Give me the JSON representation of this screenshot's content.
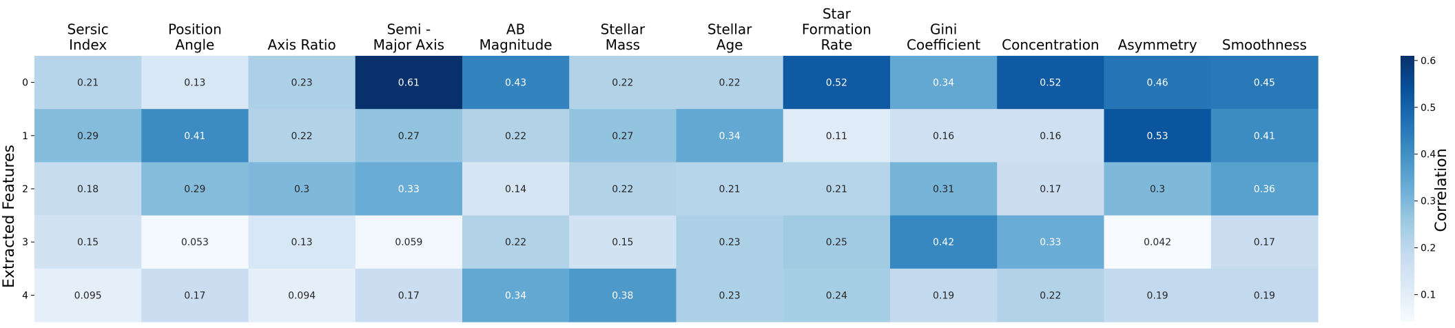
{
  "chart_data": {
    "type": "heatmap",
    "title": "",
    "xlabel": "",
    "ylabel": "Extracted Features",
    "x_categories": [
      [
        "Sersic",
        "Index"
      ],
      [
        "Position",
        "Angle"
      ],
      [
        "Axis Ratio"
      ],
      [
        "Semi -",
        "Major Axis"
      ],
      [
        "AB",
        "Magnitude"
      ],
      [
        "Stellar",
        "Mass"
      ],
      [
        "Stellar",
        "Age"
      ],
      [
        "Star",
        "Formation",
        "Rate"
      ],
      [
        "Gini",
        "Coefficient"
      ],
      [
        "Concentration"
      ],
      [
        "Asymmetry"
      ],
      [
        "Smoothness"
      ]
    ],
    "y_categories": [
      "0",
      "1",
      "2",
      "3",
      "4"
    ],
    "values": [
      [
        0.21,
        0.13,
        0.23,
        0.61,
        0.43,
        0.22,
        0.22,
        0.52,
        0.34,
        0.52,
        0.46,
        0.45
      ],
      [
        0.29,
        0.41,
        0.22,
        0.27,
        0.22,
        0.27,
        0.34,
        0.11,
        0.16,
        0.16,
        0.53,
        0.41
      ],
      [
        0.18,
        0.29,
        0.3,
        0.33,
        0.14,
        0.22,
        0.21,
        0.21,
        0.31,
        0.17,
        0.3,
        0.36
      ],
      [
        0.15,
        0.053,
        0.13,
        0.059,
        0.22,
        0.15,
        0.23,
        0.25,
        0.42,
        0.33,
        0.042,
        0.17
      ],
      [
        0.095,
        0.17,
        0.094,
        0.17,
        0.34,
        0.38,
        0.23,
        0.24,
        0.19,
        0.22,
        0.19,
        0.19
      ]
    ],
    "colorbar": {
      "label": "Correlation",
      "colormap": "Blues",
      "range": [
        0.042,
        0.61
      ],
      "ticks": [
        0.1,
        0.2,
        0.3,
        0.4,
        0.5,
        0.6
      ],
      "tick_labels": [
        "0.1",
        "0.2",
        "0.3",
        "0.4",
        "0.5",
        "0.6"
      ]
    },
    "x_axis_position": "top",
    "grid": false
  }
}
